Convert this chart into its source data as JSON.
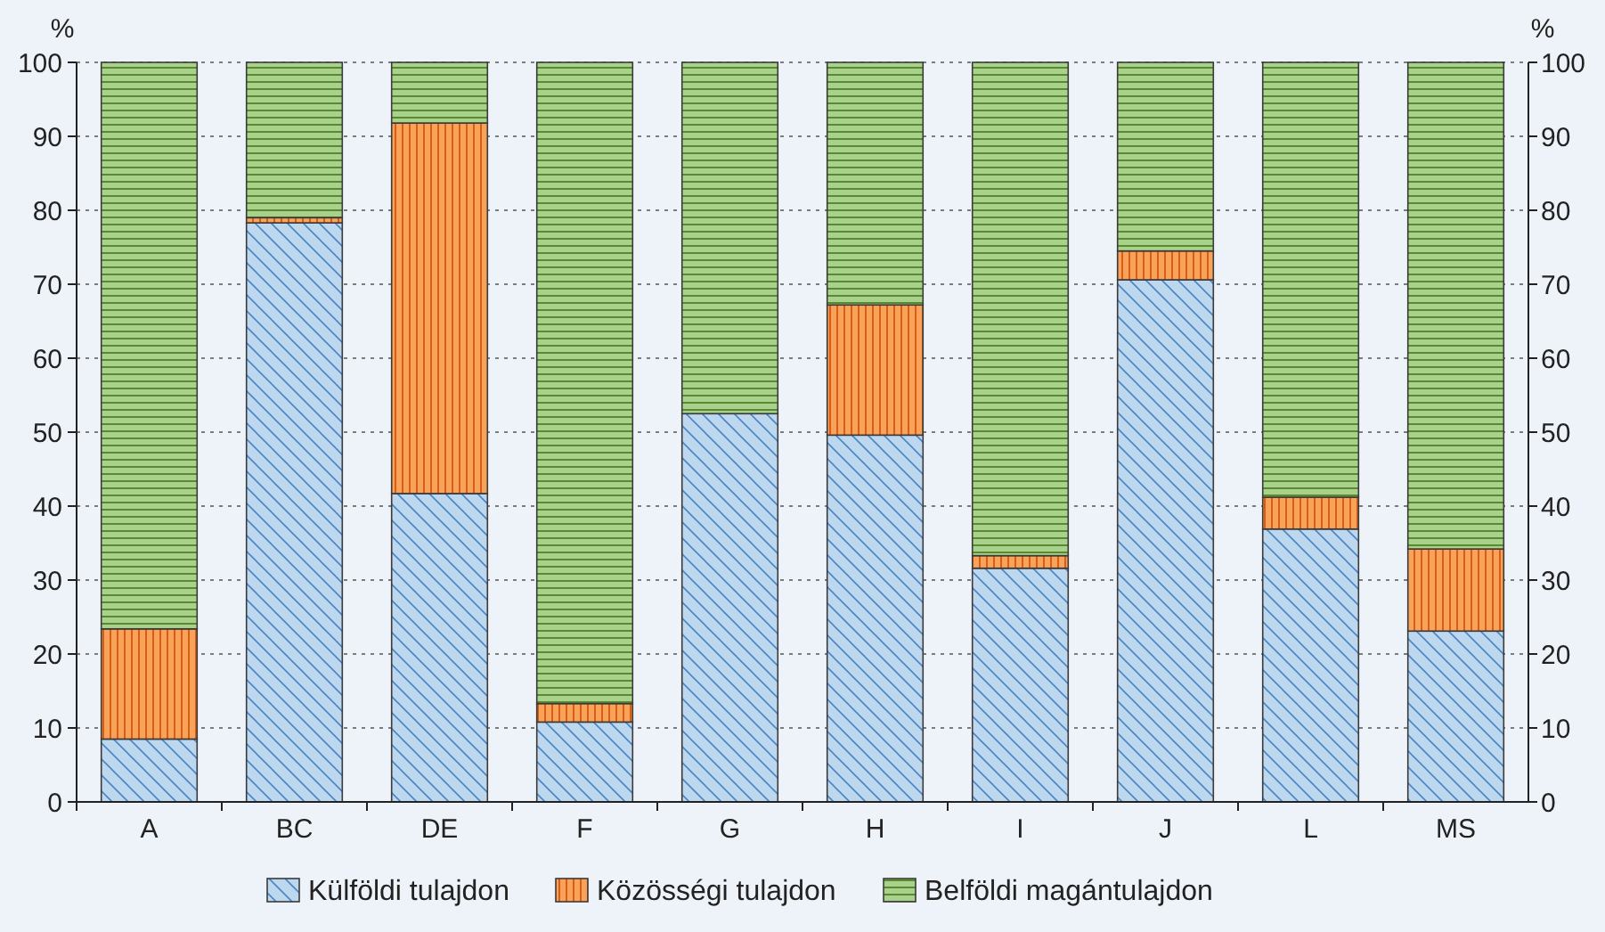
{
  "chart_data": {
    "type": "bar",
    "stacked": true,
    "ylabel": "%",
    "y2label": "%",
    "categories": [
      "A",
      "BC",
      "DE",
      "F",
      "G",
      "H",
      "I",
      "J",
      "L",
      "MS"
    ],
    "series": [
      {
        "name": "Külföldi tulajdon",
        "color": "#bdd7ee",
        "values": [
          8.5,
          78.3,
          41.7,
          10.8,
          52.5,
          49.6,
          31.6,
          70.6,
          36.9,
          23.1
        ]
      },
      {
        "name": "Közösségi tulajdon",
        "color": "#f7a35c",
        "values": [
          14.9,
          0.7,
          50.1,
          2.5,
          null,
          17.6,
          1.7,
          3.9,
          4.3,
          11.1
        ]
      },
      {
        "name": "Belföldi magántulajdon",
        "color": "#a9d18e",
        "values": [
          76.6,
          21.0,
          8.2,
          86.7,
          47.5,
          32.8,
          66.7,
          25.5,
          58.8,
          65.8
        ]
      }
    ],
    "ylim": [
      0,
      100
    ],
    "yticks": [
      0,
      10,
      20,
      30,
      40,
      50,
      60,
      70,
      80,
      90,
      100
    ],
    "y2lim": [
      0,
      100
    ],
    "y2ticks": [
      0,
      10,
      20,
      30,
      40,
      50,
      60,
      70,
      80,
      90,
      100
    ],
    "grid": "y",
    "legend": "bottom"
  }
}
